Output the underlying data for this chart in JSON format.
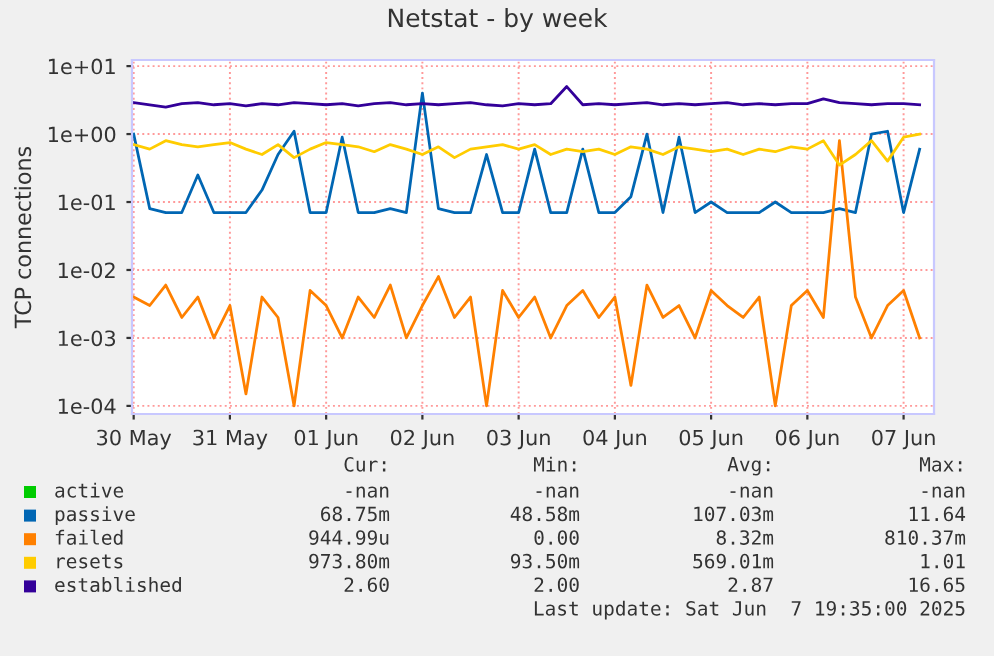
{
  "chart_data": {
    "type": "line",
    "title": "Netstat - by week",
    "ylabel": "TCP connections",
    "x": [
      "2025-05-30T12:00",
      "2025-05-30T16:00",
      "2025-05-30T20:00",
      "2025-05-31T00:00",
      "2025-05-31T04:00",
      "2025-05-31T08:00",
      "2025-05-31T12:00",
      "2025-05-31T16:00",
      "2025-05-31T20:00",
      "2025-06-01T00:00",
      "2025-06-01T04:00",
      "2025-06-01T08:00",
      "2025-06-01T12:00",
      "2025-06-01T16:00",
      "2025-06-01T20:00",
      "2025-06-02T00:00",
      "2025-06-02T04:00",
      "2025-06-02T08:00",
      "2025-06-02T12:00",
      "2025-06-02T16:00",
      "2025-06-02T20:00",
      "2025-06-03T00:00",
      "2025-06-03T04:00",
      "2025-06-03T08:00",
      "2025-06-03T12:00",
      "2025-06-03T16:00",
      "2025-06-03T20:00",
      "2025-06-04T00:00",
      "2025-06-04T04:00",
      "2025-06-04T08:00",
      "2025-06-04T12:00",
      "2025-06-04T16:00",
      "2025-06-04T20:00",
      "2025-06-05T00:00",
      "2025-06-05T04:00",
      "2025-06-05T08:00",
      "2025-06-05T12:00",
      "2025-06-05T16:00",
      "2025-06-05T20:00",
      "2025-06-06T00:00",
      "2025-06-06T04:00",
      "2025-06-06T08:00",
      "2025-06-06T12:00",
      "2025-06-06T16:00",
      "2025-06-06T20:00",
      "2025-06-07T00:00",
      "2025-06-07T04:00",
      "2025-06-07T08:00",
      "2025-06-07T12:00",
      "2025-06-07T16:00"
    ],
    "series": [
      {
        "name": "active",
        "color": "#00cc00",
        "values": [
          null,
          null,
          null,
          null,
          null,
          null,
          null,
          null,
          null,
          null,
          null,
          null,
          null,
          null,
          null,
          null,
          null,
          null,
          null,
          null,
          null,
          null,
          null,
          null,
          null,
          null,
          null,
          null,
          null,
          null,
          null,
          null,
          null,
          null,
          null,
          null,
          null,
          null,
          null,
          null,
          null,
          null,
          null,
          null,
          null,
          null,
          null,
          null,
          null,
          null
        ]
      },
      {
        "name": "passive",
        "color": "#0066b3",
        "values": [
          1.0,
          0.08,
          0.07,
          0.07,
          0.25,
          0.07,
          0.07,
          0.07,
          0.15,
          0.5,
          1.1,
          0.07,
          0.07,
          0.9,
          0.07,
          0.07,
          0.08,
          0.07,
          4,
          0.08,
          0.07,
          0.07,
          0.5,
          0.07,
          0.07,
          0.6,
          0.07,
          0.07,
          0.6,
          0.07,
          0.07,
          0.12,
          1.0,
          0.07,
          0.9,
          0.07,
          0.1,
          0.07,
          0.07,
          0.07,
          0.1,
          0.07,
          0.07,
          0.07,
          0.08,
          0.07,
          1.0,
          1.1,
          0.07,
          0.6
        ]
      },
      {
        "name": "failed",
        "color": "#ff8000",
        "values": [
          0.004,
          0.003,
          0.006,
          0.002,
          0.004,
          0.001,
          0.003,
          0.00015,
          0.004,
          0.002,
          0.0001,
          0.005,
          0.003,
          0.001,
          0.004,
          0.002,
          0.006,
          0.001,
          0.003,
          0.008,
          0.002,
          0.004,
          0.0001,
          0.005,
          0.002,
          0.004,
          0.001,
          0.003,
          0.005,
          0.002,
          0.004,
          0.0002,
          0.006,
          0.002,
          0.003,
          0.001,
          0.005,
          0.003,
          0.002,
          0.004,
          0.0001,
          0.003,
          0.005,
          0.002,
          0.8,
          0.004,
          0.001,
          0.003,
          0.005,
          0.001
        ]
      },
      {
        "name": "resets",
        "color": "#ffcc00",
        "values": [
          0.7,
          0.6,
          0.8,
          0.7,
          0.65,
          0.7,
          0.75,
          0.6,
          0.5,
          0.7,
          0.45,
          0.6,
          0.75,
          0.7,
          0.65,
          0.55,
          0.7,
          0.6,
          0.5,
          0.65,
          0.45,
          0.6,
          0.65,
          0.7,
          0.6,
          0.7,
          0.5,
          0.6,
          0.55,
          0.6,
          0.5,
          0.65,
          0.6,
          0.5,
          0.65,
          0.6,
          0.55,
          0.6,
          0.5,
          0.6,
          0.55,
          0.65,
          0.6,
          0.8,
          0.35,
          0.5,
          0.8,
          0.4,
          0.9,
          1.0
        ]
      },
      {
        "name": "established",
        "color": "#330099",
        "values": [
          2.9,
          2.7,
          2.5,
          2.8,
          2.9,
          2.7,
          2.8,
          2.6,
          2.8,
          2.7,
          2.9,
          2.8,
          2.7,
          2.8,
          2.6,
          2.8,
          2.9,
          2.7,
          2.8,
          2.7,
          2.8,
          2.9,
          2.7,
          2.6,
          2.8,
          2.7,
          2.8,
          5,
          2.7,
          2.8,
          2.7,
          2.8,
          2.9,
          2.7,
          2.8,
          2.7,
          2.8,
          2.9,
          2.7,
          2.8,
          2.7,
          2.8,
          2.8,
          3.3,
          2.9,
          2.8,
          2.7,
          2.8,
          2.8,
          2.7
        ]
      }
    ],
    "log": "y",
    "ylim": [
      7.6e-05,
      12.3
    ],
    "yticks": [
      {
        "value": 0.0001,
        "label": "1e-04"
      },
      {
        "value": 0.001,
        "label": "1e-03"
      },
      {
        "value": 0.01,
        "label": "1e-02"
      },
      {
        "value": 0.1,
        "label": "1e-01"
      },
      {
        "value": 1,
        "label": "1e+00"
      },
      {
        "value": 10,
        "label": "1e+01"
      }
    ],
    "xlim": [
      "2025-05-30T11:35",
      "2025-06-07T19:35"
    ],
    "xticks": [
      {
        "value": "2025-05-30T12:00",
        "label": "30 May"
      },
      {
        "value": "2025-05-31T12:00",
        "label": "31 May"
      },
      {
        "value": "2025-06-01T12:00",
        "label": "01 Jun"
      },
      {
        "value": "2025-06-02T12:00",
        "label": "02 Jun"
      },
      {
        "value": "2025-06-03T12:00",
        "label": "03 Jun"
      },
      {
        "value": "2025-06-04T12:00",
        "label": "04 Jun"
      },
      {
        "value": "2025-06-05T12:00",
        "label": "05 Jun"
      },
      {
        "value": "2025-06-06T12:00",
        "label": "06 Jun"
      },
      {
        "value": "2025-06-07T12:00",
        "label": "07 Jun"
      }
    ],
    "grid": true,
    "legend": "bottom",
    "line_style": "solid",
    "annotations": [
      "Cur:",
      "Min:",
      "Avg:",
      "Max:",
      "-nan",
      "-nan",
      "-nan",
      "-nan",
      "68.75m",
      "48.58m",
      "107.03m",
      "11.64",
      "944.99u",
      "0.00",
      "8.32m",
      "810.37m",
      "973.80m",
      "93.50m",
      "569.01m",
      "1.01",
      "2.60",
      "2.00",
      "2.87",
      "16.65",
      "Last update: Sat Jun  7 19:35:00 2025"
    ]
  }
}
